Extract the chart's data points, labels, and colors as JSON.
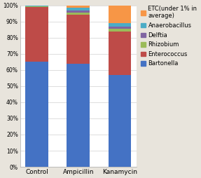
{
  "categories": [
    "Control",
    "Ampicillin",
    "Kanamycin"
  ],
  "series": {
    "Bartonella": [
      65,
      64,
      57
    ],
    "Enterococcus": [
      34,
      30,
      27
    ],
    "Rhizobium": [
      0.3,
      1.5,
      1.5
    ],
    "Delftia": [
      0.3,
      1.5,
      1.5
    ],
    "Anaerobacillus": [
      0.2,
      1.5,
      2.0
    ],
    "ETC(under 1% in\naverage)": [
      0.2,
      1.5,
      11.0
    ]
  },
  "colors": {
    "Bartonella": "#4472C4",
    "Enterococcus": "#BE4B48",
    "Rhizobium": "#9BBB59",
    "Delftia": "#8064A2",
    "Anaerobacillus": "#4BACC6",
    "ETC(under 1% in\naverage)": "#F79646"
  },
  "ylim": [
    0,
    100
  ],
  "yticks": [
    0,
    10,
    20,
    30,
    40,
    50,
    60,
    70,
    80,
    90,
    100
  ],
  "ytick_labels": [
    "0%",
    "10%",
    "20%",
    "30%",
    "40%",
    "50%",
    "60%",
    "70%",
    "80%",
    "90%",
    "100%"
  ],
  "background_color": "#e8e4dc",
  "plot_background": "#ffffff",
  "legend_fontsize": 6.0,
  "tick_fontsize": 5.5,
  "xlabel_fontsize": 6.5,
  "bar_width": 0.55
}
